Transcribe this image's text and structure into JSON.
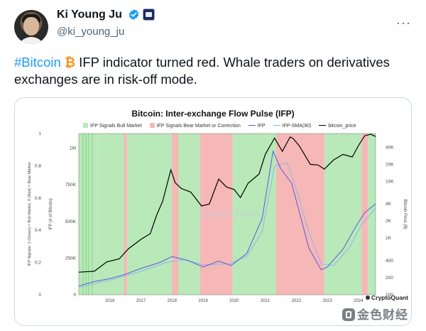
{
  "tweet": {
    "author_name": "Ki Young Ju",
    "handle": "@ki_young_ju",
    "more_icon": "ellipsis-icon",
    "hashtag": "#Bitcoin",
    "btc_symbol": "₿",
    "text": " IFP indicator turned red. Whale traders on derivatives exchanges are in risk-off mode.",
    "verified_color": "#1d9bf0",
    "hashtag_color": "#1d9bf0"
  },
  "chart": {
    "watermark": "CryptoQuant",
    "logo": "CryptoQuant",
    "source_badge": "金色财经"
  },
  "chart_data": {
    "type": "line",
    "title": "Bitcoin: Inter-exchange Flow Pulse (IFP)",
    "legend": [
      "IFP Signals Bull Market",
      "IFP Signals Bear Market or Correction",
      "IFP",
      "IFP-SMA(90)",
      "bitcoin_price"
    ],
    "colors": {
      "bull": "#b9e8b9",
      "bear": "#f6b7b7",
      "ifp": "#5b5bd6",
      "sma": "#8fb7e8",
      "price": "#000000"
    },
    "left_axis_label": "IFP Signals: 1 (Green) = Bull Market, 0 (Red) = Bear Market",
    "left_ticks": [
      "1",
      "0.8",
      "0.6",
      "0.4",
      "0.2",
      "0"
    ],
    "ifp_axis_label": "IFP (# of Bitcoin)",
    "ifp_ticks": [
      "1M",
      "750K",
      "500K",
      "250K",
      "0"
    ],
    "right_axis_label": "Bitcoin Price ($)",
    "price_ticks": [
      "40K",
      "20K",
      "10K",
      "4K",
      "2K",
      "1K",
      "400",
      "200",
      "100"
    ],
    "x_ticks": [
      "2016",
      "2017",
      "2018",
      "2019",
      "2020",
      "2021",
      "2022",
      "2023",
      "2024"
    ],
    "x_range": [
      2015.0,
      2024.55
    ],
    "ifp_range": [
      0,
      1100000
    ],
    "price_log_range": [
      100,
      70000
    ],
    "bull_periods": [
      [
        2015.0,
        2015.6
      ],
      [
        2015.6,
        2016.45
      ],
      [
        2016.55,
        2018.0
      ],
      [
        2018.2,
        2018.9
      ],
      [
        2019.95,
        2021.35
      ],
      [
        2022.9,
        2024.1
      ],
      [
        2024.3,
        2024.55
      ]
    ],
    "bear_periods": [
      [
        2016.45,
        2016.55
      ],
      [
        2018.0,
        2018.2
      ],
      [
        2018.9,
        2019.95
      ],
      [
        2021.35,
        2022.9
      ],
      [
        2024.1,
        2024.3
      ]
    ],
    "price_series": [
      [
        2015.0,
        250
      ],
      [
        2015.5,
        260
      ],
      [
        2015.9,
        380
      ],
      [
        2016.3,
        430
      ],
      [
        2016.6,
        650
      ],
      [
        2017.0,
        950
      ],
      [
        2017.3,
        1200
      ],
      [
        2017.5,
        2500
      ],
      [
        2017.7,
        4500
      ],
      [
        2017.96,
        16000
      ],
      [
        2018.1,
        9500
      ],
      [
        2018.3,
        7500
      ],
      [
        2018.6,
        6500
      ],
      [
        2018.95,
        3700
      ],
      [
        2019.2,
        4000
      ],
      [
        2019.5,
        11000
      ],
      [
        2019.75,
        8000
      ],
      [
        2020.0,
        7200
      ],
      [
        2020.2,
        5200
      ],
      [
        2020.45,
        9300
      ],
      [
        2020.8,
        13500
      ],
      [
        2021.0,
        30000
      ],
      [
        2021.3,
        58000
      ],
      [
        2021.55,
        34000
      ],
      [
        2021.8,
        61000
      ],
      [
        2021.9,
        57000
      ],
      [
        2022.1,
        42000
      ],
      [
        2022.45,
        20000
      ],
      [
        2022.7,
        19500
      ],
      [
        2022.9,
        16500
      ],
      [
        2023.2,
        24000
      ],
      [
        2023.5,
        30000
      ],
      [
        2023.8,
        27000
      ],
      [
        2024.0,
        43000
      ],
      [
        2024.2,
        64000
      ],
      [
        2024.4,
        68000
      ],
      [
        2024.55,
        62000
      ]
    ],
    "ifp_series": [
      [
        2015.0,
        60000
      ],
      [
        2015.5,
        90000
      ],
      [
        2016.0,
        110000
      ],
      [
        2016.5,
        140000
      ],
      [
        2017.0,
        180000
      ],
      [
        2017.6,
        220000
      ],
      [
        2018.0,
        260000
      ],
      [
        2018.5,
        235000
      ],
      [
        2019.0,
        190000
      ],
      [
        2019.5,
        230000
      ],
      [
        2019.9,
        200000
      ],
      [
        2020.4,
        280000
      ],
      [
        2020.9,
        520000
      ],
      [
        2021.25,
        980000
      ],
      [
        2021.5,
        860000
      ],
      [
        2021.85,
        760000
      ],
      [
        2022.1,
        560000
      ],
      [
        2022.4,
        320000
      ],
      [
        2022.8,
        170000
      ],
      [
        2023.0,
        190000
      ],
      [
        2023.5,
        310000
      ],
      [
        2023.9,
        460000
      ],
      [
        2024.2,
        560000
      ],
      [
        2024.55,
        620000
      ]
    ],
    "sma_series": [
      [
        2015.0,
        50000
      ],
      [
        2016.0,
        100000
      ],
      [
        2017.0,
        160000
      ],
      [
        2017.8,
        220000
      ],
      [
        2018.4,
        240000
      ],
      [
        2019.0,
        205000
      ],
      [
        2019.8,
        210000
      ],
      [
        2020.4,
        260000
      ],
      [
        2020.9,
        430000
      ],
      [
        2021.3,
        880000
      ],
      [
        2021.7,
        900000
      ],
      [
        2022.0,
        720000
      ],
      [
        2022.4,
        430000
      ],
      [
        2022.8,
        210000
      ],
      [
        2023.2,
        200000
      ],
      [
        2023.7,
        320000
      ],
      [
        2024.1,
        480000
      ],
      [
        2024.55,
        590000
      ]
    ]
  }
}
